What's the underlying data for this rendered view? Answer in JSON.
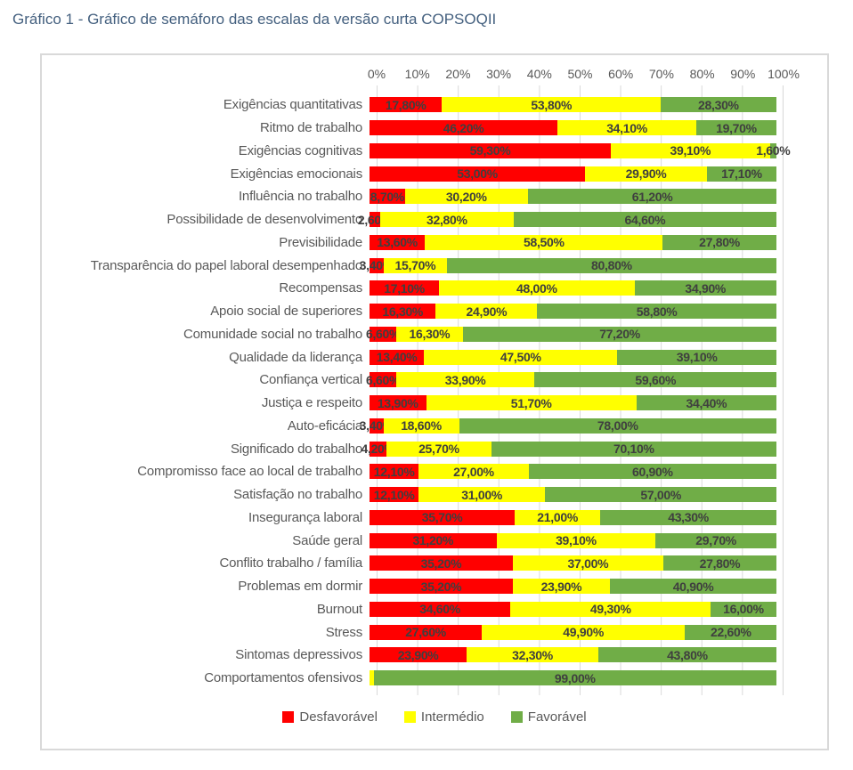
{
  "title": "Gráfico 1 - Gráfico de semáforo das escalas da versão curta COPSOQII",
  "colors": {
    "desfavoravel": "#FF0000",
    "intermedio": "#FFFF00",
    "favoravel": "#70AD47",
    "gridline": "#D9D9D9",
    "title_text": "#44607F",
    "axis_text": "#595959",
    "value_text": "#3F3F3F"
  },
  "chart_data": {
    "type": "bar",
    "orientation": "horizontal-stacked",
    "title": "Gráfico 1 - Gráfico de semáforo das escalas da versão curta COPSOQII",
    "xlim": [
      0,
      100
    ],
    "grid": true,
    "x_ticks": [
      "0%",
      "10%",
      "20%",
      "30%",
      "40%",
      "50%",
      "60%",
      "70%",
      "80%",
      "90%",
      "100%"
    ],
    "categories": [
      "Exigências quantitativas",
      "Ritmo de trabalho",
      "Exigências cognitivas",
      "Exigências emocionais",
      "Influência no trabalho",
      "Possibilidade de desenvolvimento",
      "Previsibilidade",
      "Transparência do papel laboral desempenhado",
      "Recompensas",
      "Apoio social de superiores",
      "Comunidade social no trabalho",
      "Qualidade da liderança",
      "Confiança vertical",
      "Justiça e respeito",
      "Auto-eficácia",
      "Significado do trabalho",
      "Compromisso face ao local de trabalho",
      "Satisfação no trabalho",
      "Insegurança laboral",
      "Saúde geral",
      "Conflito trabalho / família",
      "Problemas em dormir",
      "Burnout",
      "Stress",
      "Sintomas depressivos",
      "Comportamentos ofensivos"
    ],
    "series": [
      {
        "name": "Desfavorável",
        "key": "desfavoravel",
        "color": "#FF0000",
        "values": [
          17.8,
          46.2,
          59.3,
          53.0,
          8.7,
          2.6,
          13.6,
          3.4,
          17.1,
          16.3,
          6.6,
          13.4,
          6.6,
          13.9,
          3.4,
          4.2,
          12.1,
          12.1,
          35.7,
          31.2,
          35.2,
          35.2,
          34.6,
          27.6,
          23.9,
          0.0
        ],
        "labels": [
          "17,80%",
          "46,20%",
          "59,30%",
          "53,00%",
          "8,70%",
          "2,60%",
          "13,60%",
          "3,40%",
          "17,10%",
          "16,30%",
          "6,60%",
          "13,40%",
          "6,60%",
          "13,90%",
          "3,40%",
          "4,20%",
          "12,10%",
          "12,10%",
          "35,70%",
          "31,20%",
          "35,20%",
          "35,20%",
          "34,60%",
          "27,60%",
          "23,90%",
          ""
        ]
      },
      {
        "name": "Intermédio",
        "key": "intermedio",
        "color": "#FFFF00",
        "values": [
          53.8,
          34.1,
          39.1,
          29.9,
          30.2,
          32.8,
          58.5,
          15.7,
          48.0,
          24.9,
          16.3,
          47.5,
          33.9,
          51.7,
          18.6,
          25.7,
          27.0,
          31.0,
          21.0,
          39.1,
          37.0,
          23.9,
          49.3,
          49.9,
          32.3,
          1.0
        ],
        "labels": [
          "53,80%",
          "34,10%",
          "39,10%",
          "29,90%",
          "30,20%",
          "32,80%",
          "58,50%",
          "15,70%",
          "48,00%",
          "24,90%",
          "16,30%",
          "47,50%",
          "33,90%",
          "51,70%",
          "18,60%",
          "25,70%",
          "27,00%",
          "31,00%",
          "21,00%",
          "39,10%",
          "37,00%",
          "23,90%",
          "49,30%",
          "49,90%",
          "32,30%",
          ""
        ]
      },
      {
        "name": "Favorável",
        "key": "favoravel",
        "color": "#70AD47",
        "values": [
          28.3,
          19.7,
          1.6,
          17.1,
          61.2,
          64.6,
          27.8,
          80.8,
          34.9,
          58.8,
          77.2,
          39.1,
          59.6,
          34.4,
          78.0,
          70.1,
          60.9,
          57.0,
          43.3,
          29.7,
          27.8,
          40.9,
          16.0,
          22.6,
          43.8,
          99.0
        ],
        "labels": [
          "28,30%",
          "19,70%",
          "1,60%",
          "17,10%",
          "61,20%",
          "64,60%",
          "27,80%",
          "80,80%",
          "34,90%",
          "58,80%",
          "77,20%",
          "39,10%",
          "59,60%",
          "34,40%",
          "78,00%",
          "70,10%",
          "60,90%",
          "57,00%",
          "43,30%",
          "29,70%",
          "27,80%",
          "40,90%",
          "16,00%",
          "22,60%",
          "43,80%",
          "99,00%"
        ]
      }
    ],
    "legend": {
      "position": "bottom",
      "entries": [
        "Desfavorável",
        "Intermédio",
        "Favorável"
      ]
    }
  }
}
